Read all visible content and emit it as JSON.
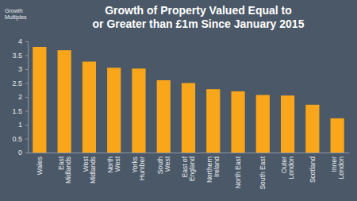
{
  "chart_data": {
    "type": "bar",
    "title": "Growth of Property Valued Equal to\nor Greater than £1m Since January 2015",
    "y_label": "Growth\nMultiples",
    "categories": [
      "Wales",
      "East Midlands",
      "West Midlands",
      "North West",
      "Yorks Humber",
      "South West",
      "East of England",
      "Northern Ireland",
      "North East",
      "South East",
      "Outer London",
      "Scotland",
      "Inner London"
    ],
    "values": [
      3.8,
      3.68,
      3.27,
      3.05,
      3.02,
      2.6,
      2.5,
      2.28,
      2.2,
      2.07,
      2.05,
      1.72,
      1.23
    ],
    "color": "#f9a61a",
    "ylim": [
      0,
      4
    ],
    "yticks": [
      0,
      0.5,
      1,
      1.5,
      2,
      2.5,
      3,
      3.5,
      4
    ],
    "grid": false
  }
}
